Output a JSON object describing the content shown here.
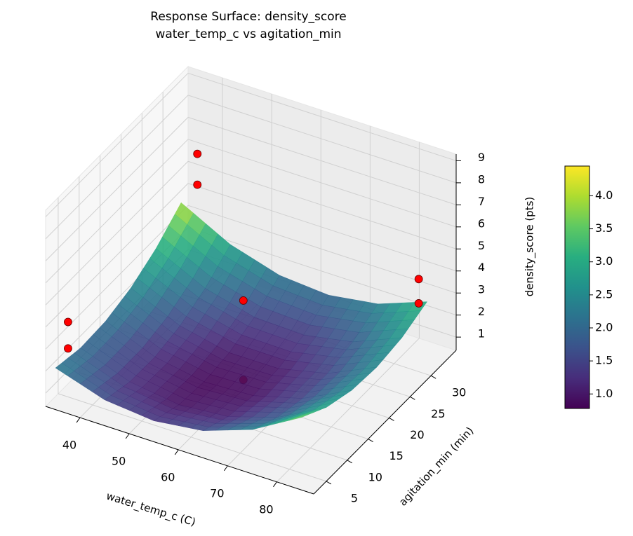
{
  "chart_data": {
    "type": "surface3d",
    "title": "Response Surface: density_score\nwater_temp_c vs agitation_min",
    "xlabel": "water_temp_c (C)",
    "ylabel": "agitation_min (min)",
    "zlabel": "density_score (pts)",
    "xlim": [
      33,
      87.5
    ],
    "ylim": [
      2,
      36
    ],
    "zlim": [
      0.4,
      9.3
    ],
    "xticks": [
      40,
      50,
      60,
      70,
      80
    ],
    "yticks": [
      5,
      10,
      15,
      20,
      25,
      30
    ],
    "zticks": [
      1,
      2,
      3,
      4,
      5,
      6,
      7,
      8,
      9
    ],
    "colormap": "viridis",
    "clim": [
      0.78,
      4.45
    ],
    "cticks": [
      {
        "value": 1,
        "label": "1.0"
      },
      1.5,
      {
        "value": 2,
        "label": "2.0"
      },
      2.5,
      {
        "value": 3,
        "label": "3.0"
      },
      3.5,
      {
        "value": 4,
        "label": "4.0"
      }
    ],
    "surface": {
      "x": [
        35,
        45,
        55,
        65,
        75,
        85
      ],
      "y": [
        2,
        8,
        14,
        20,
        26,
        32
      ],
      "z": [
        [
          2.29,
          2.05,
          2.12,
          2.47,
          3.11,
          4.04
        ],
        [
          1.57,
          1.24,
          1.22,
          1.48,
          2.03,
          2.87
        ],
        [
          1.35,
          0.93,
          0.82,
          0.99,
          1.45,
          2.2
        ],
        [
          1.63,
          1.12,
          0.92,
          1.0,
          1.37,
          2.03
        ],
        [
          2.41,
          1.81,
          1.52,
          1.51,
          1.79,
          2.36
        ],
        [
          3.69,
          3.0,
          2.62,
          2.52,
          2.71,
          3.19
        ]
      ]
    },
    "points": {
      "color": "#ff0000",
      "x": [
        35,
        35,
        40,
        40,
        60,
        60,
        85,
        85
      ],
      "y": [
        5,
        5,
        30,
        30,
        17.5,
        17.5,
        30,
        30
      ],
      "z": [
        3.8,
        2.6,
        7.0,
        5.6,
        4.2,
        0.6,
        4.6,
        3.5
      ]
    }
  }
}
